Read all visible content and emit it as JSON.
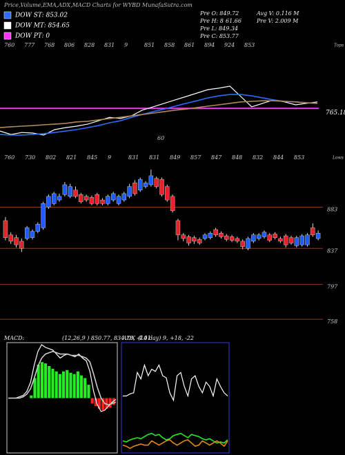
{
  "header": {
    "title": "Price,Volume,EMA,ADX,MACD Charts for WYBD MunafaSutra.com",
    "legend": [
      {
        "label": "DOW ST: 853.02",
        "color": "#2f6bff"
      },
      {
        "label": "DOW MT: 854.65",
        "color": "#ffffff"
      },
      {
        "label": "DOW PT: 0",
        "color": "#ff33ff"
      }
    ],
    "info": [
      "Pre O: 849.72",
      "Avg V: 0.116  M",
      "Pre H: 8",
      "61.66",
      "Pre V: 2.009 M",
      "Pre L: 849.34",
      "Pre C: 853.77"
    ]
  },
  "chart_data": [
    {
      "type": "line",
      "ylim": [
        650,
        1000
      ],
      "series": [
        {
          "color": "#ffffff",
          "values": [
            686,
            674,
            681,
            679,
            672,
            691,
            698,
            703,
            710,
            722,
            734,
            730,
            739,
            759,
            771,
            783,
            795,
            807,
            819,
            831,
            836,
            843,
            807,
            771,
            783,
            795,
            788,
            778,
            783,
            788
          ]
        },
        {
          "color": "#2f6bff",
          "values": [
            674,
            672,
            672,
            674,
            677,
            681,
            686,
            691,
            698,
            705,
            715,
            722,
            734,
            744,
            754,
            763,
            773,
            783,
            792,
            802,
            809,
            814,
            814,
            809,
            802,
            795,
            790,
            788,
            785,
            783
          ]
        },
        {
          "color": "#b08a5a",
          "values": [
            698,
            701,
            703,
            705,
            708,
            710,
            713,
            718,
            720,
            725,
            730,
            734,
            739,
            744,
            749,
            754,
            759,
            763,
            768,
            773,
            778,
            783,
            788,
            790,
            792,
            792,
            790,
            788,
            785,
            783
          ]
        }
      ],
      "hline": {
        "value": 765.18,
        "color": "#ff33ff"
      },
      "tops_label": "Tops",
      "tops": [
        760,
        777,
        768,
        806,
        828,
        831,
        9,
        851,
        858,
        861,
        894,
        924,
        853
      ],
      "annotation": "60"
    },
    {
      "type": "candlestick",
      "ylim": [
        745,
        941
      ],
      "yticks": [
        883,
        837,
        797,
        758
      ],
      "grid": true,
      "up_color": "#1f5cff",
      "down_color": "#e8202a",
      "lows_label": "Lows",
      "lows": [
        760,
        730,
        802,
        821,
        845,
        9,
        831,
        831,
        849,
        857,
        847,
        848,
        832,
        844,
        853
      ],
      "open": [
        868,
        852,
        849,
        845,
        848,
        849,
        856,
        860,
        883,
        887,
        891,
        897,
        895,
        902,
        897,
        895,
        894,
        897,
        891,
        887,
        891,
        887,
        891,
        895,
        910,
        902,
        906,
        908,
        915,
        914,
        906,
        895,
        868,
        852,
        850,
        849,
        847,
        848,
        849,
        858,
        854,
        851,
        850,
        848,
        845,
        837,
        845,
        848,
        850,
        852,
        853,
        848,
        851,
        849,
        840,
        841,
        841,
        860,
        848
      ],
      "close": [
        849,
        845,
        841,
        837,
        860,
        856,
        864,
        887,
        895,
        898,
        895,
        908,
        906,
        895,
        889,
        891,
        887,
        887,
        887,
        895,
        898,
        895,
        898,
        906,
        898,
        914,
        910,
        918,
        906,
        897,
        891,
        879,
        852,
        848,
        843,
        845,
        843,
        852,
        854,
        852,
        850,
        847,
        846,
        845,
        839,
        848,
        852,
        852,
        855,
        846,
        849,
        845,
        841,
        843,
        849,
        851,
        852,
        852,
        854
      ],
      "high": [
        872,
        855,
        852,
        848,
        862,
        858,
        866,
        889,
        897,
        900,
        898,
        911,
        909,
        906,
        899,
        897,
        896,
        899,
        893,
        897,
        900,
        897,
        900,
        909,
        913,
        916,
        912,
        925,
        917,
        916,
        908,
        897,
        870,
        854,
        852,
        851,
        849,
        854,
        856,
        860,
        856,
        853,
        852,
        850,
        847,
        850,
        854,
        854,
        857,
        854,
        855,
        850,
        853,
        851,
        851,
        853,
        854,
        865,
        857
      ],
      "low": [
        846,
        842,
        838,
        833,
        846,
        847,
        854,
        858,
        881,
        885,
        889,
        895,
        893,
        893,
        887,
        889,
        885,
        885,
        885,
        885,
        889,
        885,
        889,
        893,
        896,
        900,
        904,
        906,
        904,
        895,
        889,
        877,
        846,
        845,
        840,
        842,
        841,
        846,
        847,
        850,
        848,
        845,
        844,
        843,
        836,
        835,
        843,
        846,
        848,
        844,
        847,
        843,
        838,
        841,
        838,
        839,
        839,
        850,
        846
      ]
    },
    {
      "type": "macd",
      "label": "MACD:",
      "params": "(12,26,9 ) 850.77, 834.78, -4.01",
      "ylim": [
        -40,
        40
      ],
      "pos_color": "#22ee22",
      "neg_color": "#ff2020",
      "histogram": [
        0,
        0,
        0,
        0,
        0,
        0,
        2,
        15,
        25,
        27,
        26,
        24,
        22,
        20,
        18,
        20,
        21,
        19,
        18,
        20,
        17,
        15,
        10,
        -4,
        -6,
        -8,
        -9,
        -8,
        -7,
        -5
      ],
      "series": [
        {
          "color": "#ffffff",
          "values": [
            0,
            0,
            0,
            1,
            2,
            5,
            12,
            25,
            35,
            40,
            38,
            37,
            36,
            33,
            30,
            32,
            33,
            32,
            31,
            33,
            30,
            28,
            20,
            5,
            -5,
            -10,
            -9,
            -6,
            -3,
            -1
          ]
        },
        {
          "color": "#cccccc",
          "values": [
            0,
            0,
            0,
            0,
            1,
            3,
            7,
            15,
            24,
            30,
            33,
            34,
            35,
            34,
            33,
            33,
            33,
            32,
            32,
            32,
            31,
            30,
            27,
            18,
            8,
            0,
            -4,
            -5,
            -4,
            -3
          ]
        }
      ]
    },
    {
      "type": "line",
      "label": "ADX",
      "params": "(14 day) 9, +18, -22",
      "ylim": [
        0,
        100
      ],
      "series": [
        {
          "color": "#ffffff",
          "values": [
            52,
            52,
            54,
            55,
            74,
            68,
            81,
            71,
            77,
            75,
            81,
            71,
            69,
            55,
            48,
            71,
            74,
            61,
            52,
            68,
            71,
            61,
            55,
            65,
            61,
            52,
            68,
            61,
            55,
            52
          ]
        },
        {
          "color": "#22ee22",
          "values": [
            10,
            9,
            11,
            12,
            13,
            12,
            14,
            16,
            17,
            15,
            16,
            13,
            11,
            12,
            15,
            16,
            17,
            15,
            13,
            16,
            15,
            14,
            12,
            11,
            12,
            10,
            8,
            9,
            8,
            11
          ]
        },
        {
          "color": "#e08a1a",
          "values": [
            6,
            5,
            3,
            5,
            6,
            7,
            6,
            6,
            10,
            8,
            6,
            8,
            10,
            11,
            8,
            6,
            8,
            10,
            11,
            8,
            5,
            6,
            10,
            8,
            6,
            8,
            10,
            8,
            5,
            10
          ]
        }
      ]
    }
  ]
}
